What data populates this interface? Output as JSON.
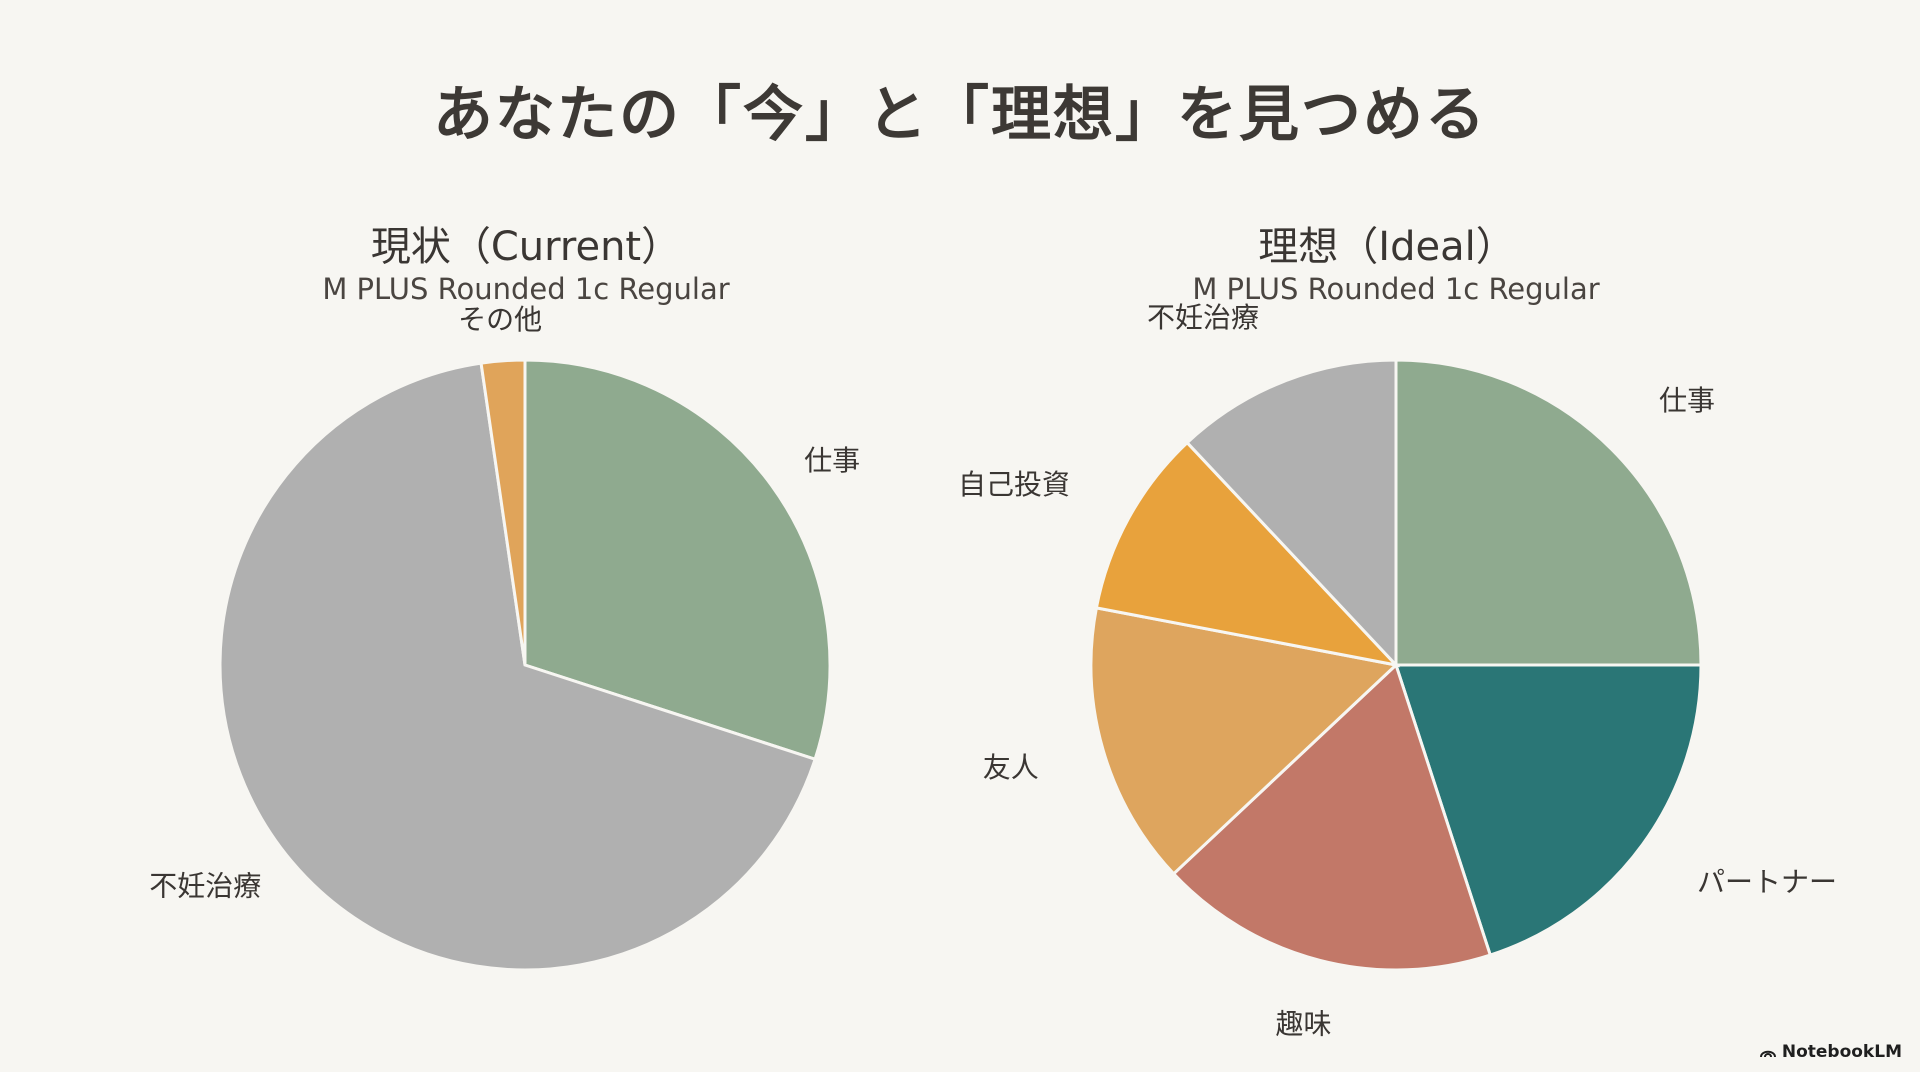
{
  "title": "あなたの「今」と「理想」を見つめる",
  "watermark": "NotebookLM",
  "colors": {
    "work": "#8faa8f",
    "fertility": "#b0b0b0",
    "other": "#e0a45a",
    "self_investment": "#e8a23c",
    "friends": "#dea55e",
    "hobby": "#c27868",
    "partner": "#2a7676",
    "separator": "#f7f6f2"
  },
  "chart_data": [
    {
      "type": "pie",
      "title": "現状（Current）",
      "subtitle": "M PLUS Rounded 1c Regular",
      "slices": [
        {
          "label": "仕事",
          "value": 30,
          "color": "#8faa8f"
        },
        {
          "label": "不妊治療",
          "value": 67.7,
          "color": "#b0b0b0"
        },
        {
          "label": "その他",
          "value": 2.3,
          "color": "#e0a45a"
        }
      ]
    },
    {
      "type": "pie",
      "title": "理想（Ideal）",
      "subtitle": "M PLUS Rounded 1c Regular",
      "slices": [
        {
          "label": "仕事",
          "value": 25,
          "color": "#8faa8f"
        },
        {
          "label": "パートナー",
          "value": 20,
          "color": "#2a7676"
        },
        {
          "label": "趣味",
          "value": 18,
          "color": "#c27868"
        },
        {
          "label": "友人",
          "value": 15,
          "color": "#dea55e"
        },
        {
          "label": "自己投資",
          "value": 10,
          "color": "#e8a23c"
        },
        {
          "label": "不妊治療",
          "value": 12,
          "color": "#b0b0b0"
        }
      ]
    }
  ]
}
